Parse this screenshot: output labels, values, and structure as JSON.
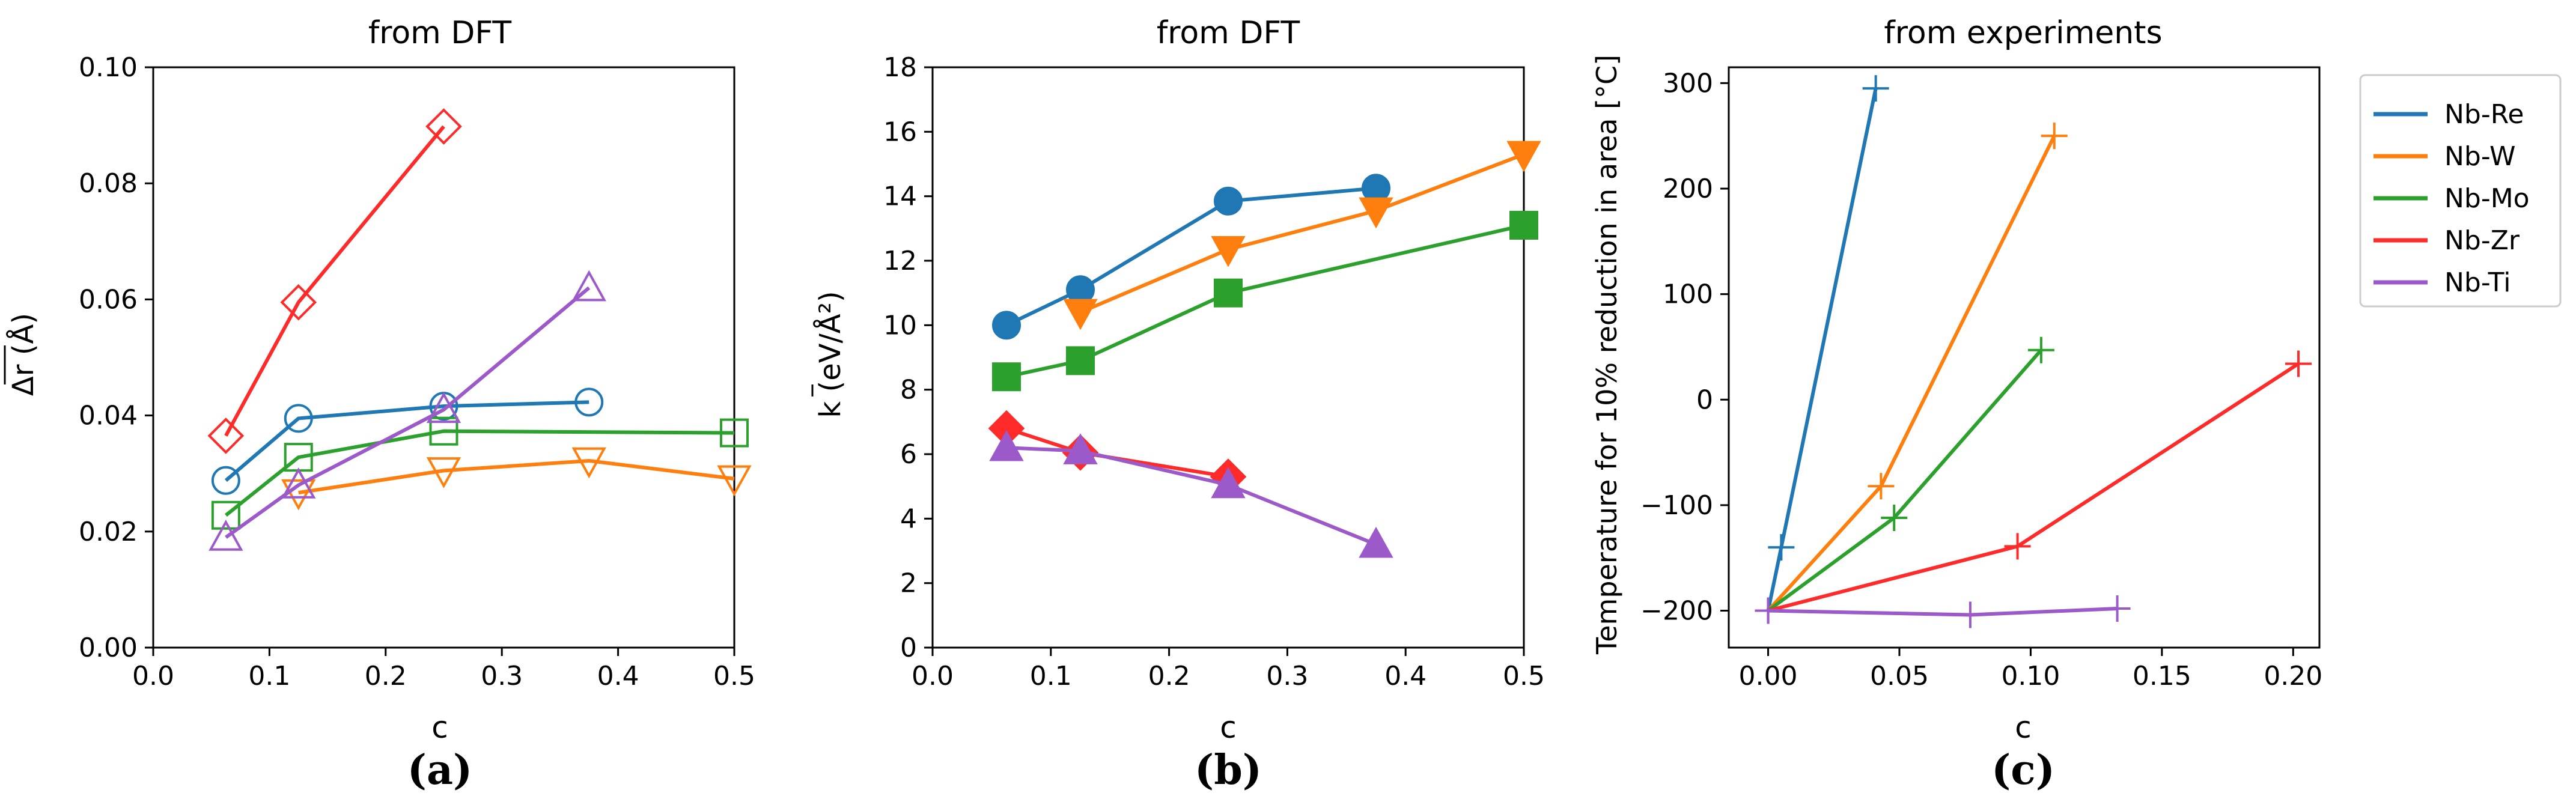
{
  "colors": {
    "Nb-Re": "#1f77b4",
    "Nb-W": "#ff7f0e",
    "Nb-Mo": "#2ca02c",
    "Nb-Zr": "#ff2a2a",
    "Nb-Ti": "#9b59c9"
  },
  "legend": {
    "placement": "right, outside panel (c)",
    "entries": [
      "Nb-Re",
      "Nb-W",
      "Nb-Mo",
      "Nb-Zr",
      "Nb-Ti"
    ]
  },
  "chart_data": [
    {
      "panel": "(a)",
      "type": "line",
      "title": "from DFT",
      "xlabel": "c",
      "ylabel": "Δr (Å)",
      "xlim": [
        0,
        0.5
      ],
      "ylim": [
        0,
        0.1
      ],
      "xticks": [
        "0.0",
        "0.1",
        "0.2",
        "0.3",
        "0.4",
        "0.5"
      ],
      "yticks": [
        "0.00",
        "0.02",
        "0.04",
        "0.06",
        "0.08",
        "0.10"
      ],
      "marker_fill": "open",
      "series": [
        {
          "name": "Nb-Re",
          "marker": "circle",
          "x": [
            0.0625,
            0.125,
            0.25,
            0.375
          ],
          "y": [
            0.0288,
            0.0395,
            0.0416,
            0.0423
          ]
        },
        {
          "name": "Nb-W",
          "marker": "triangle-down",
          "x": [
            0.125,
            0.25,
            0.375,
            0.5
          ],
          "y": [
            0.0267,
            0.0305,
            0.0322,
            0.0291
          ]
        },
        {
          "name": "Nb-Mo",
          "marker": "square",
          "x": [
            0.0625,
            0.125,
            0.25,
            0.5
          ],
          "y": [
            0.0228,
            0.0328,
            0.0373,
            0.037
          ]
        },
        {
          "name": "Nb-Zr",
          "marker": "diamond",
          "x": [
            0.0625,
            0.125,
            0.25
          ],
          "y": [
            0.0365,
            0.0595,
            0.0898
          ]
        },
        {
          "name": "Nb-Ti",
          "marker": "triangle-up",
          "x": [
            0.0625,
            0.125,
            0.25,
            0.375
          ],
          "y": [
            0.019,
            0.028,
            0.041,
            0.062
          ]
        }
      ]
    },
    {
      "panel": "(b)",
      "type": "line",
      "title": "from DFT",
      "xlabel": "c",
      "ylabel": "k (eV/Å²)",
      "xlim": [
        0,
        0.5
      ],
      "ylim": [
        0,
        18
      ],
      "xticks": [
        "0.0",
        "0.1",
        "0.2",
        "0.3",
        "0.4",
        "0.5"
      ],
      "yticks": [
        "0",
        "2",
        "4",
        "6",
        "8",
        "10",
        "12",
        "14",
        "16",
        "18"
      ],
      "marker_fill": "filled",
      "series": [
        {
          "name": "Nb-Re",
          "marker": "circle",
          "x": [
            0.0625,
            0.125,
            0.25,
            0.375
          ],
          "y": [
            10.0,
            11.1,
            13.85,
            14.25
          ]
        },
        {
          "name": "Nb-W",
          "marker": "triangle-down",
          "x": [
            0.125,
            0.25,
            0.375,
            0.5
          ],
          "y": [
            10.4,
            12.35,
            13.55,
            15.3
          ]
        },
        {
          "name": "Nb-Mo",
          "marker": "square",
          "x": [
            0.0625,
            0.125,
            0.25,
            0.5
          ],
          "y": [
            8.4,
            8.9,
            11.0,
            13.1
          ]
        },
        {
          "name": "Nb-Zr",
          "marker": "diamond",
          "x": [
            0.0625,
            0.125,
            0.25
          ],
          "y": [
            6.8,
            6.05,
            5.3
          ]
        },
        {
          "name": "Nb-Ti",
          "marker": "triangle-up",
          "x": [
            0.0625,
            0.125,
            0.25,
            0.375
          ],
          "y": [
            6.2,
            6.1,
            5.05,
            3.2
          ]
        }
      ]
    },
    {
      "panel": "(c)",
      "type": "line",
      "title": "from experiments",
      "xlabel": "c",
      "ylabel": "Temperature for 10% reduction in area [°C]",
      "xlim": [
        -0.015,
        0.21
      ],
      "ylim": [
        -235,
        315
      ],
      "xticks": [
        "0.00",
        "0.05",
        "0.10",
        "0.15",
        "0.20"
      ],
      "yticks": [
        "−200",
        "−100",
        "0",
        "100",
        "200",
        "300"
      ],
      "marker": "plus",
      "series": [
        {
          "name": "Nb-Re",
          "x": [
            0.0,
            0.005,
            0.041
          ],
          "y": [
            -200,
            -140,
            295
          ]
        },
        {
          "name": "Nb-W",
          "x": [
            0.0,
            0.043,
            0.109
          ],
          "y": [
            -200,
            -82,
            250
          ]
        },
        {
          "name": "Nb-Mo",
          "x": [
            0.0,
            0.048,
            0.104
          ],
          "y": [
            -200,
            -112,
            47
          ]
        },
        {
          "name": "Nb-Zr",
          "x": [
            0.0,
            0.095,
            0.202
          ],
          "y": [
            -200,
            -139,
            34
          ]
        },
        {
          "name": "Nb-Ti",
          "x": [
            0.0,
            0.077,
            0.133
          ],
          "y": [
            -200,
            -204,
            -198
          ]
        }
      ]
    }
  ]
}
